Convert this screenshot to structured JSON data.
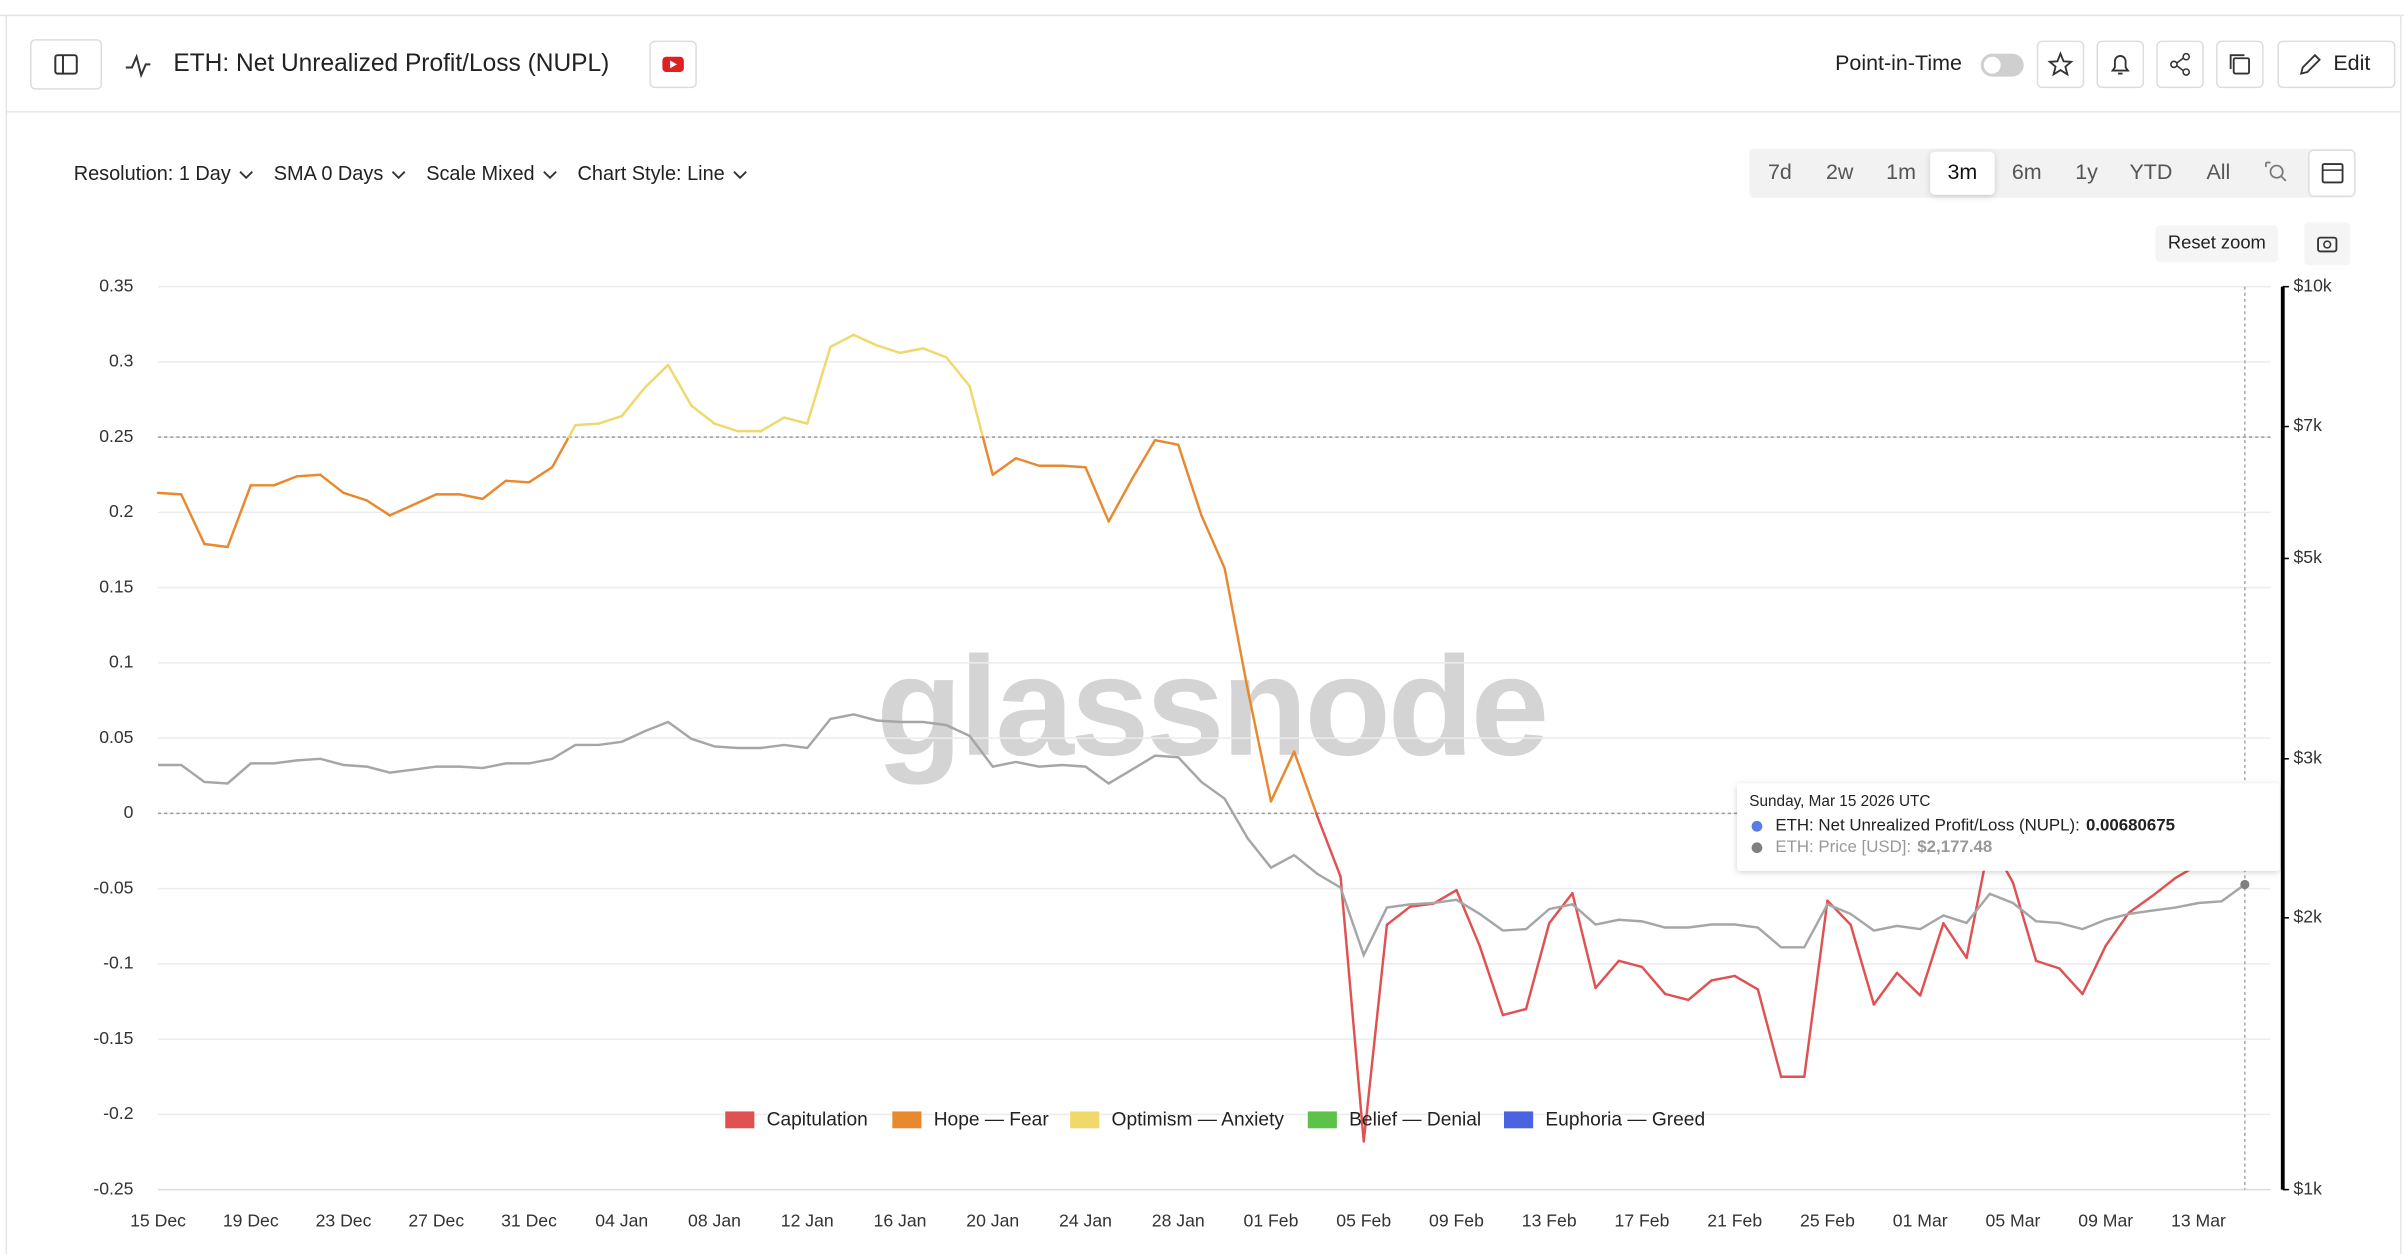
{
  "header": {
    "title": "ETH: Net Unrealized Profit/Loss (NUPL)",
    "point_in_time": "Point-in-Time",
    "edit": "Edit"
  },
  "toolbar": {
    "options": [
      "Resolution: 1 Day",
      "SMA 0 Days",
      "Scale Mixed",
      "Chart Style: Line"
    ],
    "ranges": [
      "7d",
      "2w",
      "1m",
      "3m",
      "6m",
      "1y",
      "YTD",
      "All"
    ],
    "active_range_index": 3,
    "reset_zoom": "Reset zoom"
  },
  "watermark": "glassnode",
  "tooltip": {
    "title": "Sunday, Mar 15 2026 UTC",
    "rows": [
      {
        "label": "ETH: Net Unrealized Profit/Loss (NUPL):",
        "value": "0.00680675",
        "color": "#5a7ae6"
      },
      {
        "label": "ETH: Price [USD]:",
        "value": "$2,177.48",
        "color": "#808080"
      }
    ]
  },
  "chart_data": {
    "type": "line",
    "categories": [
      "15 Dec",
      null,
      null,
      null,
      "19 Dec",
      null,
      null,
      null,
      "23 Dec",
      null,
      null,
      null,
      "27 Dec",
      null,
      null,
      null,
      "31 Dec",
      null,
      null,
      null,
      "04 Jan",
      null,
      null,
      null,
      "08 Jan",
      null,
      null,
      null,
      "12 Jan",
      null,
      null,
      null,
      "16 Jan",
      null,
      null,
      null,
      "20 Jan",
      null,
      null,
      null,
      "24 Jan",
      null,
      null,
      null,
      "28 Jan",
      null,
      null,
      null,
      "01 Feb",
      null,
      null,
      null,
      "05 Feb",
      null,
      null,
      null,
      "09 Feb",
      null,
      null,
      null,
      "13 Feb",
      null,
      null,
      null,
      "17 Feb",
      null,
      null,
      null,
      "21 Feb",
      null,
      null,
      null,
      "25 Feb",
      null,
      null,
      null,
      "01 Mar",
      null,
      null,
      null,
      "05 Mar",
      null,
      null,
      null,
      "09 Mar",
      null,
      null,
      null,
      "13 Mar",
      null,
      null
    ],
    "series": [
      {
        "zoned": true,
        "values": [
          0.213,
          0.212,
          0.179,
          0.177,
          0.218,
          0.218,
          0.224,
          0.225,
          0.213,
          0.208,
          0.198,
          0.205,
          0.212,
          0.212,
          0.209,
          0.221,
          0.22,
          0.23,
          0.258,
          0.259,
          0.264,
          0.283,
          0.298,
          0.271,
          0.259,
          0.254,
          0.254,
          0.263,
          0.259,
          0.31,
          0.318,
          0.311,
          0.306,
          0.309,
          0.303,
          0.284,
          0.225,
          0.236,
          0.231,
          0.231,
          0.23,
          0.194,
          0.222,
          0.248,
          0.245,
          0.198,
          0.163,
          0.082,
          0.008,
          0.041,
          -0.002,
          -0.042,
          -0.218,
          -0.074,
          -0.062,
          -0.06,
          -0.051,
          -0.088,
          -0.134,
          -0.13,
          -0.073,
          -0.053,
          -0.116,
          -0.098,
          -0.102,
          -0.12,
          -0.124,
          -0.111,
          -0.108,
          -0.117,
          -0.175,
          -0.175,
          -0.058,
          -0.074,
          -0.127,
          -0.106,
          -0.121,
          -0.073,
          -0.096,
          -0.018,
          -0.046,
          -0.098,
          -0.103,
          -0.12,
          -0.088,
          -0.066,
          -0.055,
          -0.043,
          -0.034,
          -0.033,
          0.00680675
        ],
        "end_color": "#5a7ae6"
      },
      {
        "color": "#a6a6a6",
        "axis": "y2",
        "values": [
          2953,
          2953,
          2828,
          2817,
          2965,
          2965,
          2988,
          3000,
          2953,
          2941,
          2896,
          2918,
          2941,
          2941,
          2930,
          2965,
          2965,
          3000,
          3108,
          3108,
          3133,
          3219,
          3295,
          3157,
          3096,
          3084,
          3084,
          3108,
          3084,
          3321,
          3360,
          3308,
          3295,
          3295,
          3269,
          3181,
          2941,
          2976,
          2941,
          2953,
          2941,
          2817,
          2918,
          3024,
          3012,
          2828,
          2710,
          2448,
          2273,
          2346,
          2237,
          2160,
          1819,
          2053,
          2070,
          2077,
          2094,
          2020,
          1936,
          1943,
          2045,
          2070,
          1966,
          1990,
          1982,
          1951,
          1951,
          1966,
          1966,
          1951,
          1855,
          1855,
          2070,
          2020,
          1936,
          1959,
          1943,
          2012,
          1974,
          2126,
          2077,
          1982,
          1974,
          1943,
          1990,
          2020,
          2037,
          2053,
          2077,
          2086,
          2177.48
        ],
        "end_color": "#808080"
      }
    ],
    "zones": [
      {
        "name": "Capitulation",
        "color": "#e05252"
      },
      {
        "name": "Hope — Fear",
        "color": "#e8892f"
      },
      {
        "name": "Optimism — Anxiety",
        "color": "#f0d86a"
      },
      {
        "name": "Belief — Denial",
        "color": "#5cc24a"
      },
      {
        "name": "Euphoria — Greed",
        "color": "#4a63e0"
      }
    ],
    "zone_thresholds": [
      0,
      0.25
    ],
    "ylim": [
      -0.25,
      0.35
    ],
    "yticks": [
      0.35,
      0.3,
      0.25,
      0.2,
      0.15,
      0.1,
      0.05,
      0,
      -0.05,
      -0.1,
      -0.15,
      -0.2,
      -0.25
    ],
    "y2scale": "log",
    "y2lim": [
      1000,
      10000
    ],
    "y2ticks": [
      {
        "value": 10000,
        "label": "$10k"
      },
      {
        "value": 7000,
        "label": "$7k"
      },
      {
        "value": 5000,
        "label": "$5k"
      },
      {
        "value": 3000,
        "label": "$3k"
      },
      {
        "value": 2000,
        "label": "$2k"
      },
      {
        "value": 1000,
        "label": "$1k"
      }
    ],
    "grid": true
  }
}
